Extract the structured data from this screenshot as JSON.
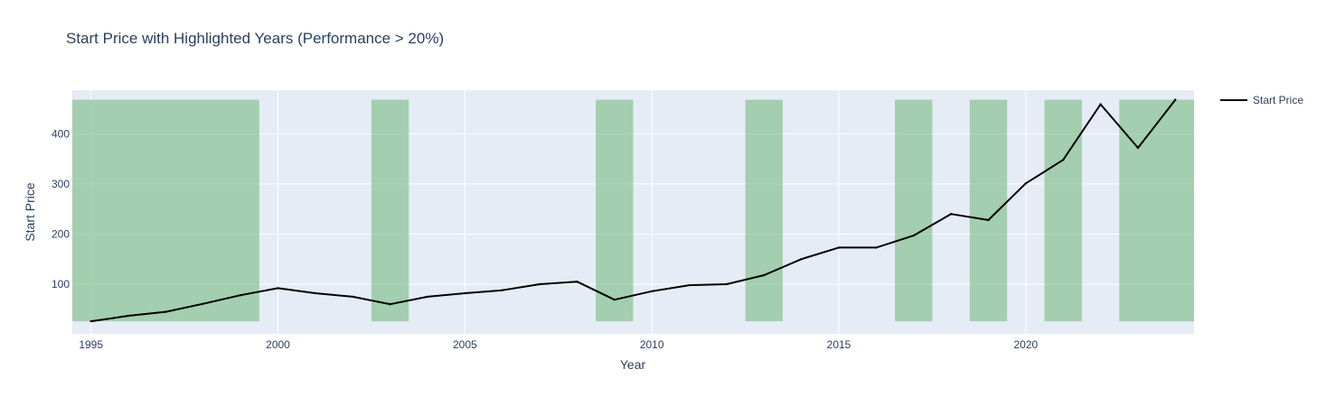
{
  "chart_data": {
    "type": "line",
    "title": "Start Price with Highlighted Years (Performance > 20%)",
    "xlabel": "Year",
    "ylabel": "Start Price",
    "xlim": [
      1994.5,
      2024.5
    ],
    "ylim": [
      1,
      487
    ],
    "x_ticks": [
      1995,
      2000,
      2005,
      2010,
      2015,
      2020
    ],
    "y_ticks": [
      100,
      200,
      300,
      400
    ],
    "grid": true,
    "legend_position": "top-right",
    "colors": {
      "line": "#000000",
      "highlight": "#7fbf8a",
      "plot_background": "#e5ecf6",
      "grid": "#ffffff",
      "text": "#2a3f5f"
    },
    "series": [
      {
        "name": "Start Price",
        "x": [
          1995,
          1996,
          1997,
          1998,
          1999,
          2000,
          2001,
          2002,
          2003,
          2004,
          2005,
          2006,
          2007,
          2008,
          2009,
          2010,
          2011,
          2012,
          2013,
          2014,
          2015,
          2016,
          2017,
          2018,
          2019,
          2020,
          2021,
          2022,
          2023,
          2024
        ],
        "values": [
          26,
          37,
          45,
          61,
          78,
          92,
          82,
          75,
          60,
          75,
          82,
          88,
          100,
          105,
          69,
          86,
          98,
          100,
          118,
          150,
          173,
          173,
          197,
          240,
          228,
          301,
          348,
          459,
          372,
          468
        ]
      }
    ],
    "highlight_bands": [
      {
        "x0": 1994.5,
        "x1": 1999.5
      },
      {
        "x0": 2002.5,
        "x1": 2003.5
      },
      {
        "x0": 2008.5,
        "x1": 2009.5
      },
      {
        "x0": 2012.5,
        "x1": 2013.5
      },
      {
        "x0": 2016.5,
        "x1": 2017.5
      },
      {
        "x0": 2018.5,
        "x1": 2019.5
      },
      {
        "x0": 2020.5,
        "x1": 2021.5
      },
      {
        "x0": 2022.5,
        "x1": 2024.5
      }
    ],
    "highlight_y_range": [
      26,
      468
    ]
  }
}
